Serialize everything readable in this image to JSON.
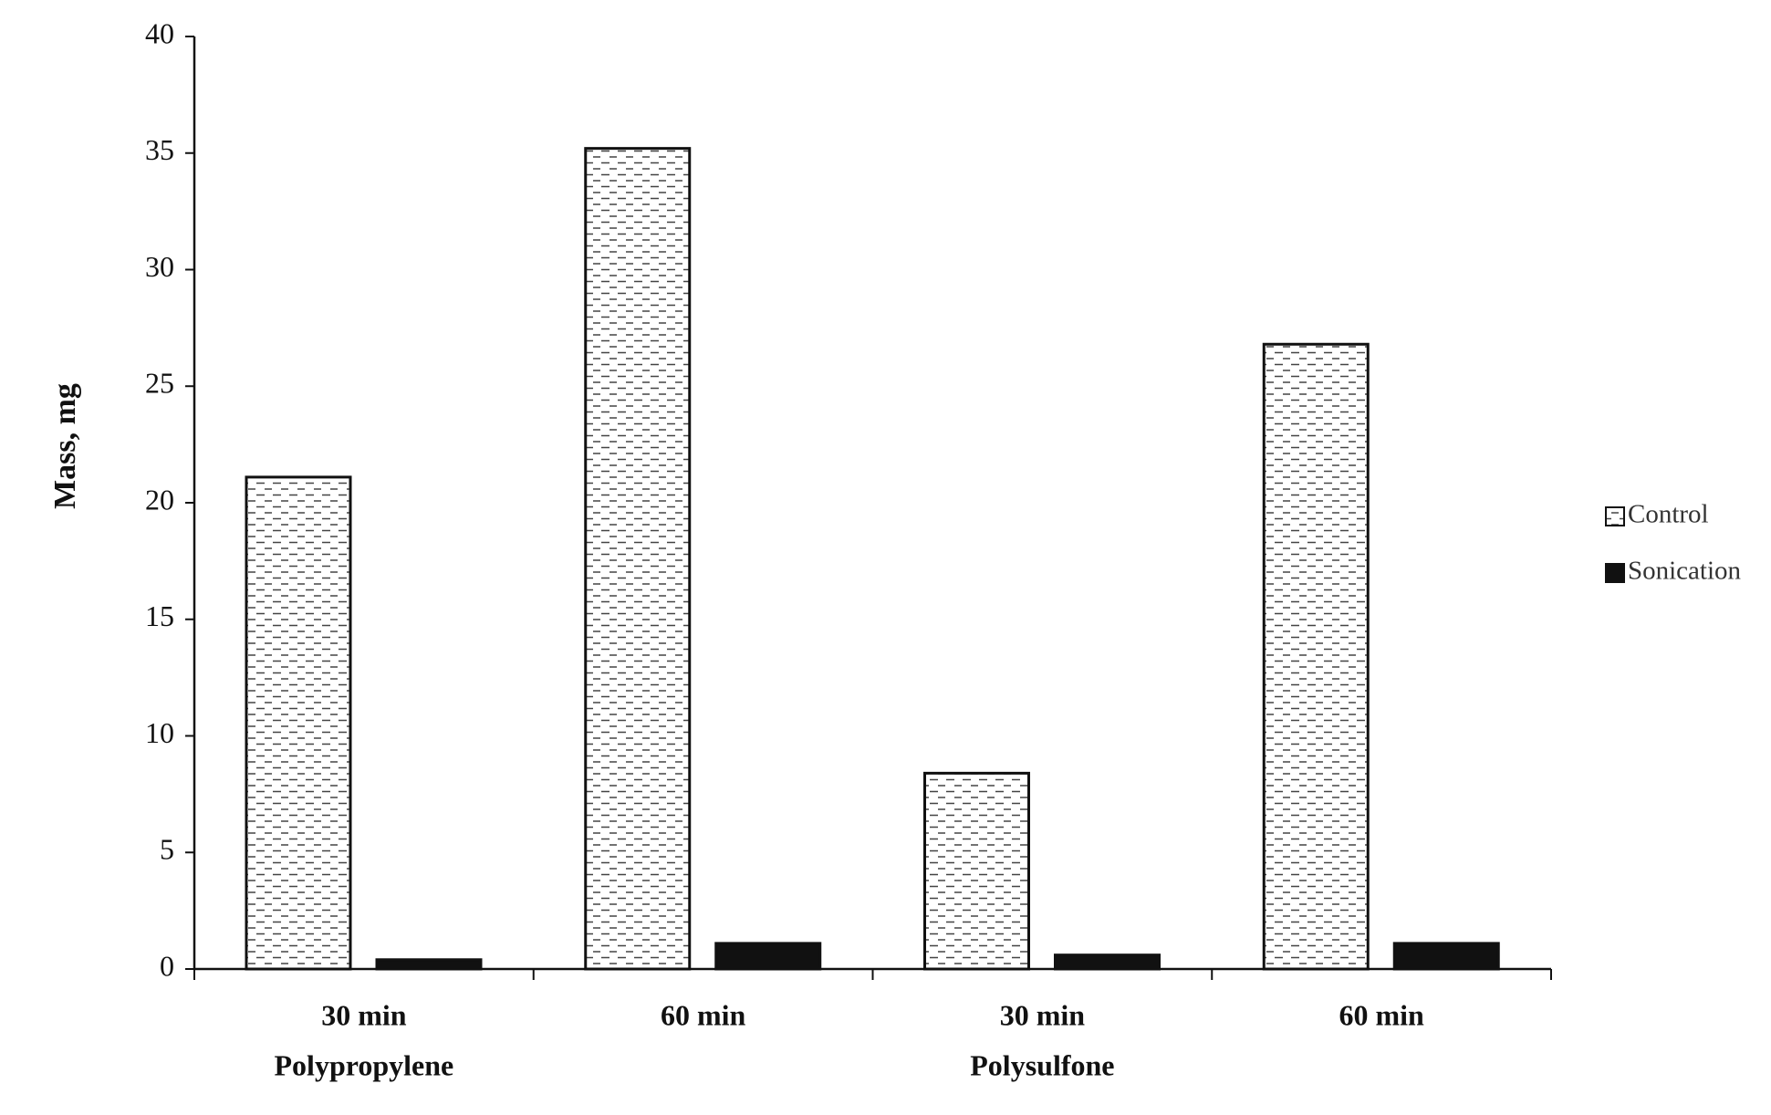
{
  "chart_data": {
    "type": "bar",
    "y_label": "Mass, mg",
    "categories": [
      "30 min",
      "60 min",
      "30 min",
      "60 min"
    ],
    "group_labels": [
      "Polypropylene",
      null,
      "Polysulfone",
      null
    ],
    "series": [
      {
        "name": "Control",
        "color": "#ffffff",
        "pattern": "dashes",
        "values": [
          21.1,
          35.2,
          8.4,
          26.8
        ]
      },
      {
        "name": "Sonication",
        "color": "#111111",
        "pattern": "solid",
        "values": [
          0.4,
          1.1,
          0.6,
          1.1
        ]
      }
    ],
    "ylim": [
      0,
      40
    ],
    "yticks": [
      0,
      5,
      10,
      15,
      20,
      25,
      30,
      35,
      40
    ],
    "grid": false,
    "legend": "right"
  }
}
